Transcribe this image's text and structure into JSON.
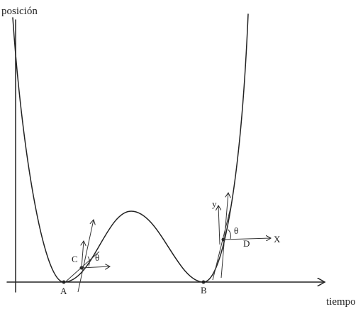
{
  "axes": {
    "y_label": "posición",
    "x_label": "tiempo"
  },
  "points": [
    {
      "label": "A"
    },
    {
      "label": "B"
    },
    {
      "label": "C"
    },
    {
      "label": "D"
    }
  ],
  "annotations": [
    {
      "label": "θ"
    },
    {
      "label": "θ"
    },
    {
      "label": "y"
    },
    {
      "label": "X"
    }
  ]
}
